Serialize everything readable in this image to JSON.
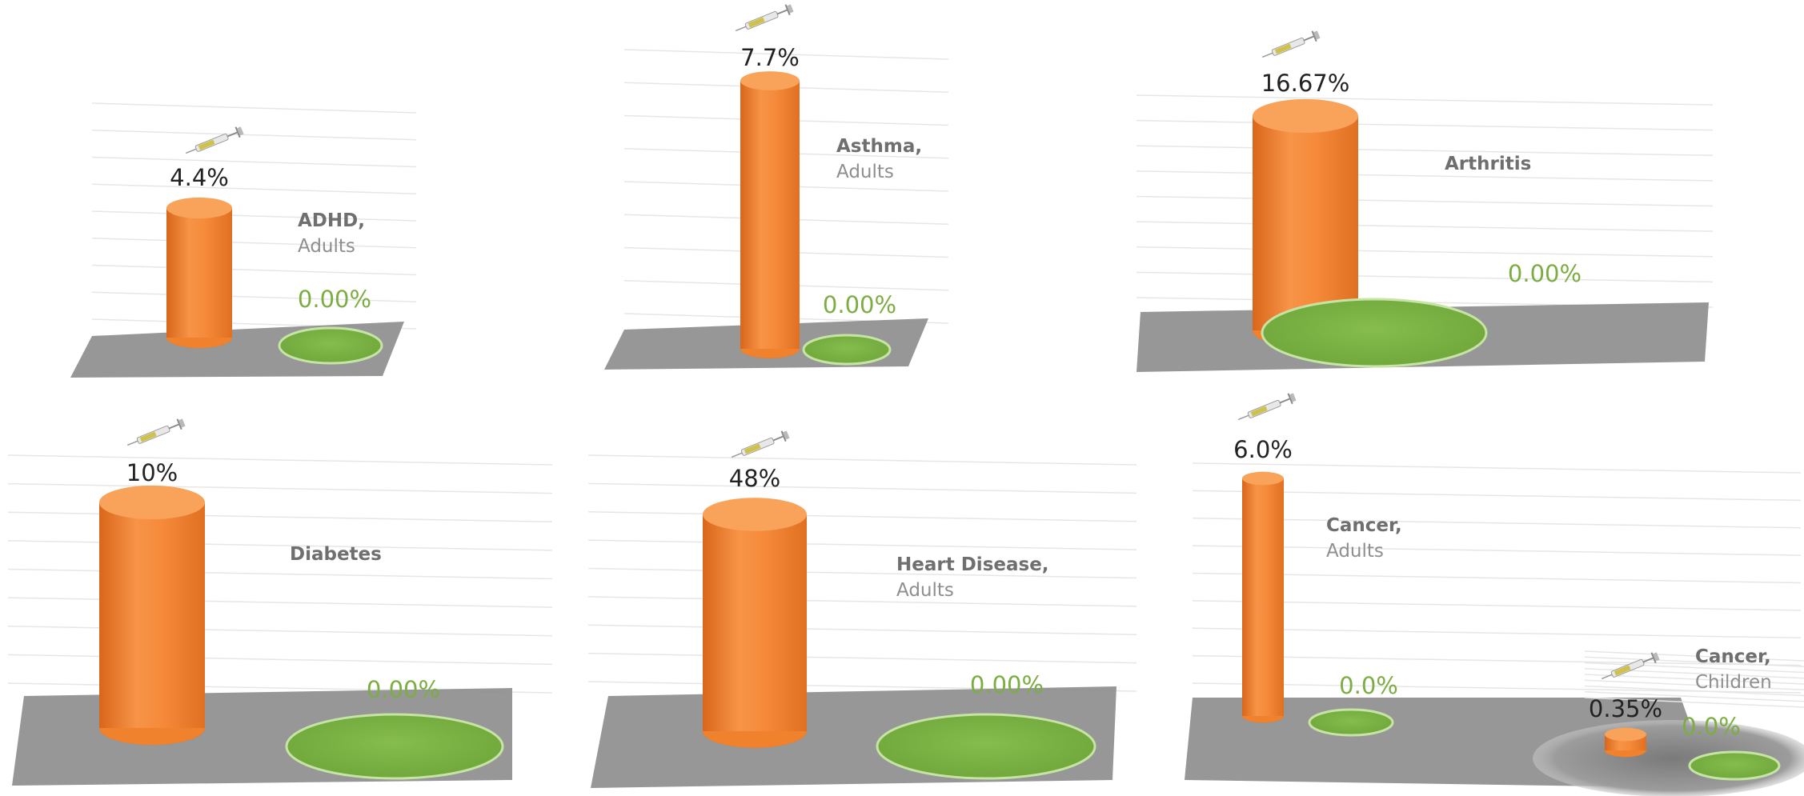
{
  "chart_data": [
    {
      "type": "bar",
      "label": "ADHD,",
      "sublabel": "Adults",
      "value": 4.4,
      "value_label": "4.4%",
      "comparison_value": 0,
      "comparison_label": "0.00%"
    },
    {
      "type": "bar",
      "label": "Asthma,",
      "sublabel": "Adults",
      "value": 7.7,
      "value_label": "7.7%",
      "comparison_value": 0,
      "comparison_label": "0.00%"
    },
    {
      "type": "bar",
      "label": "Arthritis",
      "sublabel": "",
      "value": 16.67,
      "value_label": "16.67%",
      "comparison_value": 0,
      "comparison_label": "0.00%"
    },
    {
      "type": "bar",
      "label": "Diabetes",
      "sublabel": "",
      "value": 10,
      "value_label": "10%",
      "comparison_value": 0,
      "comparison_label": "0.00%"
    },
    {
      "type": "bar",
      "label": "Heart Disease,",
      "sublabel": "Adults",
      "value": 48,
      "value_label": "48%",
      "comparison_value": 0,
      "comparison_label": "0.00%"
    },
    {
      "type": "bar",
      "label": "Cancer,",
      "sublabel": "Adults",
      "value": 6.0,
      "value_label": "6.0%",
      "comparison_value": 0,
      "comparison_label": "0.0%"
    },
    {
      "type": "bar",
      "label": "Cancer,",
      "sublabel": "Children",
      "value": 0.35,
      "value_label": "0.35%",
      "comparison_value": 0,
      "comparison_label": "0.0%"
    }
  ],
  "colors": {
    "bar": "#f0812d",
    "bar_light": "#f9a259",
    "bar_dark": "#c95f12",
    "comparison": "#79b044",
    "comparison_edge": "#c6e4a3",
    "floor": "#8c8c8c"
  },
  "icons": {
    "value_marker": "syringe-icon"
  }
}
